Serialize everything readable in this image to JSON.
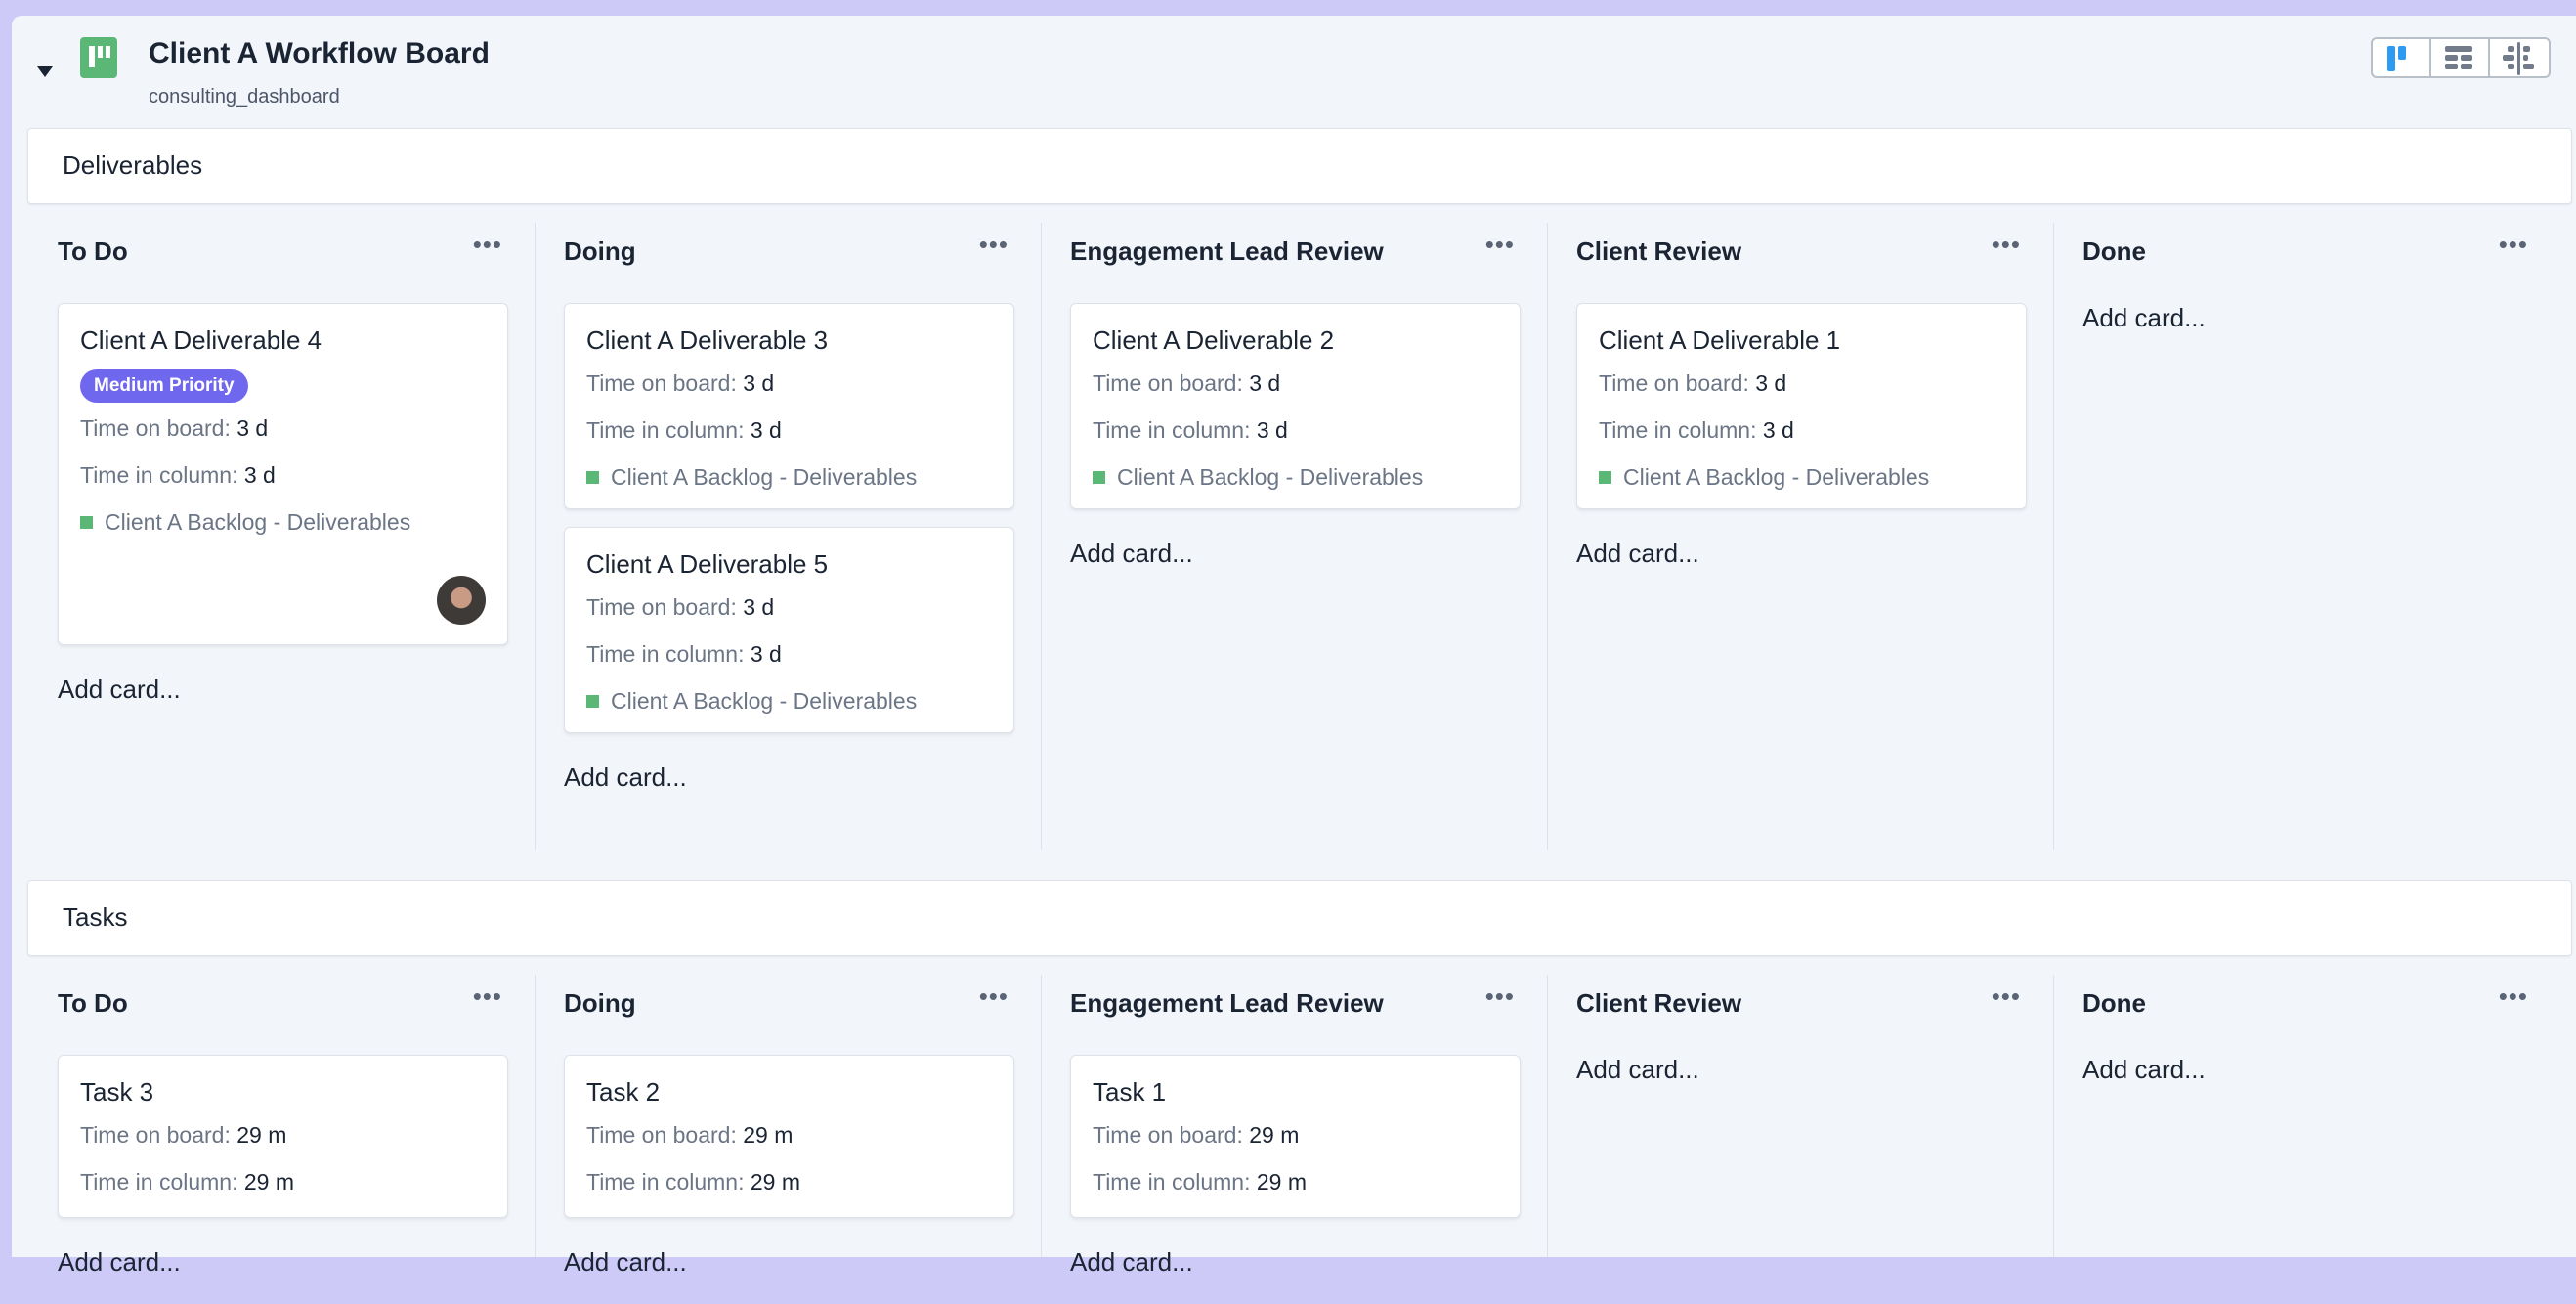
{
  "header": {
    "title": "Client A Workflow Board",
    "subtitle": "consulting_dashboard",
    "collapse_icon": "caret-down-icon",
    "logo_icon": "kanban-board-icon",
    "views": [
      {
        "name": "board-view",
        "active": true,
        "color": "#2e9bf0"
      },
      {
        "name": "table-view",
        "active": false,
        "color": "#717b8a"
      },
      {
        "name": "timeline-view",
        "active": false,
        "color": "#717b8a"
      }
    ]
  },
  "colors": {
    "accent_green": "#5bb776",
    "priority_badge": "#6f68ee",
    "background": "#f2f5fa",
    "frame": "#cdcaf7"
  },
  "add_card_label": "Add card...",
  "labels": {
    "time_on_board": "Time on board:",
    "time_in_column": "Time in column:"
  },
  "sections": [
    {
      "name": "Deliverables",
      "columns": [
        {
          "name": "To Do",
          "cards": [
            {
              "title": "Client A Deliverable 4",
              "badge": "Medium Priority",
              "time_on_board": "3 d",
              "time_in_column": "3 d",
              "tag": "Client A Backlog - Deliverables",
              "avatar": true
            }
          ]
        },
        {
          "name": "Doing",
          "cards": [
            {
              "title": "Client A Deliverable 3",
              "time_on_board": "3 d",
              "time_in_column": "3 d",
              "tag": "Client A Backlog - Deliverables"
            },
            {
              "title": "Client A Deliverable 5",
              "time_on_board": "3 d",
              "time_in_column": "3 d",
              "tag": "Client A Backlog - Deliverables"
            }
          ]
        },
        {
          "name": "Engagement Lead Review",
          "cards": [
            {
              "title": "Client A Deliverable 2",
              "time_on_board": "3 d",
              "time_in_column": "3 d",
              "tag": "Client A Backlog - Deliverables"
            }
          ]
        },
        {
          "name": "Client Review",
          "cards": [
            {
              "title": "Client A Deliverable 1",
              "time_on_board": "3 d",
              "time_in_column": "3 d",
              "tag": "Client A Backlog - Deliverables"
            }
          ]
        },
        {
          "name": "Done",
          "cards": []
        }
      ]
    },
    {
      "name": "Tasks",
      "columns": [
        {
          "name": "To Do",
          "cards": [
            {
              "title": "Task 3",
              "time_on_board": "29 m",
              "time_in_column": "29 m"
            }
          ]
        },
        {
          "name": "Doing",
          "cards": [
            {
              "title": "Task 2",
              "time_on_board": "29 m",
              "time_in_column": "29 m"
            }
          ]
        },
        {
          "name": "Engagement Lead Review",
          "cards": [
            {
              "title": "Task 1",
              "time_on_board": "29 m",
              "time_in_column": "29 m"
            }
          ]
        },
        {
          "name": "Client Review",
          "cards": []
        },
        {
          "name": "Done",
          "cards": []
        }
      ]
    }
  ]
}
